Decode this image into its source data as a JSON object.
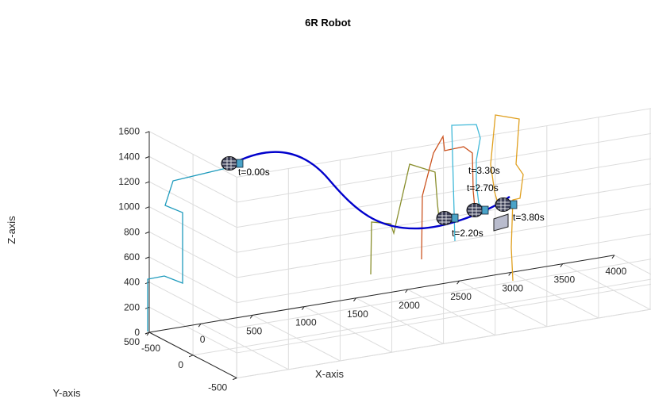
{
  "chart_data": {
    "type": "line",
    "title": "6R Robot",
    "xlabel": "X-axis",
    "ylabel": "Y-axis",
    "zlabel": "Z-axis",
    "xlim": [
      -500,
      4000
    ],
    "ylim": [
      -500,
      500
    ],
    "zlim": [
      0,
      1600
    ],
    "x_ticks": [
      "-500",
      "0",
      "500",
      "1000",
      "1500",
      "2000",
      "2500",
      "3000",
      "3500",
      "4000"
    ],
    "y_ticks": [
      "500",
      "0",
      "-500"
    ],
    "z_ticks": [
      "0",
      "200",
      "400",
      "600",
      "800",
      "1000",
      "1200",
      "1400",
      "1600"
    ],
    "grid": true,
    "annotations": [
      "t=0.00s",
      "t=2.20s",
      "t=2.70s",
      "t=3.30s",
      "t=3.80s"
    ],
    "colors": {
      "trajectory": "#0000cc",
      "arm_t0": "#1f9bbd",
      "arm_t22": "#8a8f2e",
      "arm_t27": "#cc5522",
      "arm_t33": "#3fb8d8",
      "arm_t38": "#e0a020",
      "grid": "#dcdcdc"
    }
  }
}
